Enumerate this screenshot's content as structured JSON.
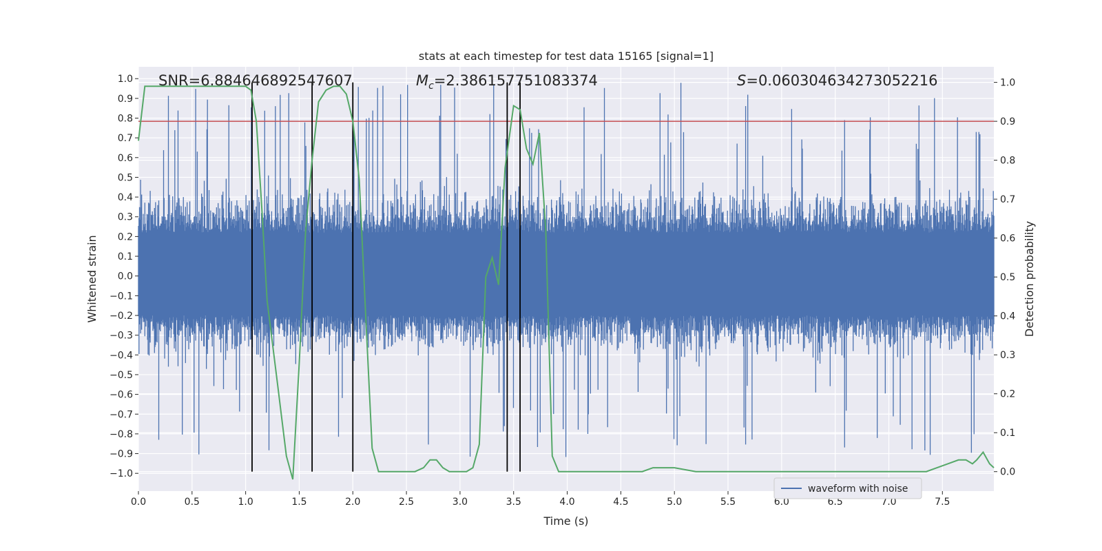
{
  "chart_data": {
    "type": "line",
    "title": "stats at each timestep for test data 15165 [signal=1]",
    "xlabel": "Time (s)",
    "ylabel_left": "Whitened strain",
    "ylabel_right": "Detection probability",
    "xlim": [
      0,
      7.98
    ],
    "ylim_left": [
      -1.09,
      1.06
    ],
    "ylim_right": [
      -0.05,
      1.04
    ],
    "x_ticks": [
      0.0,
      0.5,
      1.0,
      1.5,
      2.0,
      2.5,
      3.0,
      3.5,
      4.0,
      4.5,
      5.0,
      5.5,
      6.0,
      6.5,
      7.0,
      7.5
    ],
    "x_tick_labels": [
      "0.0",
      "0.5",
      "1.0",
      "1.5",
      "2.0",
      "2.5",
      "3.0",
      "3.5",
      "4.0",
      "4.5",
      "5.0",
      "5.5",
      "6.0",
      "6.5",
      "7.0",
      "7.5"
    ],
    "y_left_ticks": [
      1.0,
      0.9,
      0.8,
      0.7,
      0.6,
      0.5,
      0.4,
      0.3,
      0.2,
      0.1,
      0.0,
      -0.1,
      -0.2,
      -0.3,
      -0.4,
      -0.5,
      -0.6,
      -0.7,
      -0.8,
      -0.9,
      -1.0
    ],
    "y_left_tick_labels": [
      "1.0",
      "0.9",
      "0.8",
      "0.7",
      "0.6",
      "0.5",
      "0.4",
      "0.3",
      "0.2",
      "0.1",
      "0.0",
      "−0.1",
      "−0.2",
      "−0.3",
      "−0.4",
      "−0.5",
      "−0.6",
      "−0.7",
      "−0.8",
      "−0.9",
      "−1.0"
    ],
    "y_right_ticks": [
      1.0,
      0.9,
      0.8,
      0.7,
      0.6,
      0.5,
      0.4,
      0.3,
      0.2,
      0.1,
      0.0
    ],
    "y_right_tick_labels": [
      "1.0",
      "0.9",
      "0.8",
      "0.7",
      "0.6",
      "0.5",
      "0.4",
      "0.3",
      "0.2",
      "0.1",
      "0.0"
    ],
    "grid": true,
    "legend": {
      "placement": "lower-right",
      "entries": [
        "waveform with noise"
      ]
    },
    "annotations": {
      "snr_label": "SNR=6.884646892547607",
      "mc_symbol": "M",
      "mc_subscript": "c",
      "mc_value": "=2.386157751083374",
      "s_symbol": "S",
      "s_value": "=0.060304634273052216"
    },
    "waveform": {
      "name": "waveform with noise",
      "color": "#4c72b0",
      "n_samples": 1600,
      "typical_range": [
        -0.5,
        0.6
      ],
      "peak_max": 0.98,
      "peak_min": -0.92
    },
    "threshold_line": {
      "y": 0.9,
      "axis": "right",
      "color": "#c44e52"
    },
    "detection_vlines_x": [
      1.06,
      1.62,
      2.0,
      3.44,
      3.56
    ],
    "vline_color": "#000000",
    "detection_probability": {
      "color": "#55a868",
      "x": [
        0.0,
        0.06,
        0.12,
        0.2,
        0.4,
        0.6,
        0.8,
        0.9,
        1.0,
        1.05,
        1.1,
        1.15,
        1.2,
        1.3,
        1.38,
        1.44,
        1.5,
        1.56,
        1.62,
        1.68,
        1.75,
        1.82,
        1.88,
        1.94,
        2.0,
        2.06,
        2.12,
        2.18,
        2.24,
        2.3,
        2.36,
        2.42,
        2.5,
        2.58,
        2.66,
        2.72,
        2.78,
        2.84,
        2.9,
        2.98,
        3.06,
        3.12,
        3.18,
        3.24,
        3.3,
        3.36,
        3.42,
        3.5,
        3.56,
        3.62,
        3.68,
        3.74,
        3.8,
        3.86,
        3.92,
        4.0,
        4.2,
        4.4,
        4.6,
        4.7,
        4.8,
        5.0,
        5.2,
        5.4,
        5.6,
        5.8,
        6.0,
        6.2,
        6.4,
        6.7,
        7.0,
        7.2,
        7.35,
        7.45,
        7.55,
        7.65,
        7.72,
        7.78,
        7.82,
        7.88,
        7.94,
        7.98
      ],
      "y": [
        0.85,
        0.99,
        0.99,
        0.99,
        0.99,
        0.99,
        0.99,
        0.99,
        0.99,
        0.98,
        0.9,
        0.68,
        0.44,
        0.22,
        0.04,
        -0.02,
        0.28,
        0.62,
        0.8,
        0.95,
        0.98,
        0.99,
        0.99,
        0.97,
        0.9,
        0.75,
        0.4,
        0.06,
        0.0,
        0.0,
        0.0,
        0.0,
        0.0,
        0.0,
        0.01,
        0.03,
        0.03,
        0.01,
        0.0,
        0.0,
        0.0,
        0.01,
        0.07,
        0.5,
        0.55,
        0.48,
        0.78,
        0.94,
        0.93,
        0.83,
        0.79,
        0.87,
        0.62,
        0.04,
        0.0,
        0.0,
        0.0,
        0.0,
        0.0,
        0.0,
        0.01,
        0.01,
        0.0,
        0.0,
        0.0,
        0.0,
        0.0,
        0.0,
        0.0,
        0.0,
        0.0,
        0.0,
        0.0,
        0.01,
        0.02,
        0.03,
        0.03,
        0.02,
        0.03,
        0.05,
        0.02,
        0.01
      ]
    }
  }
}
